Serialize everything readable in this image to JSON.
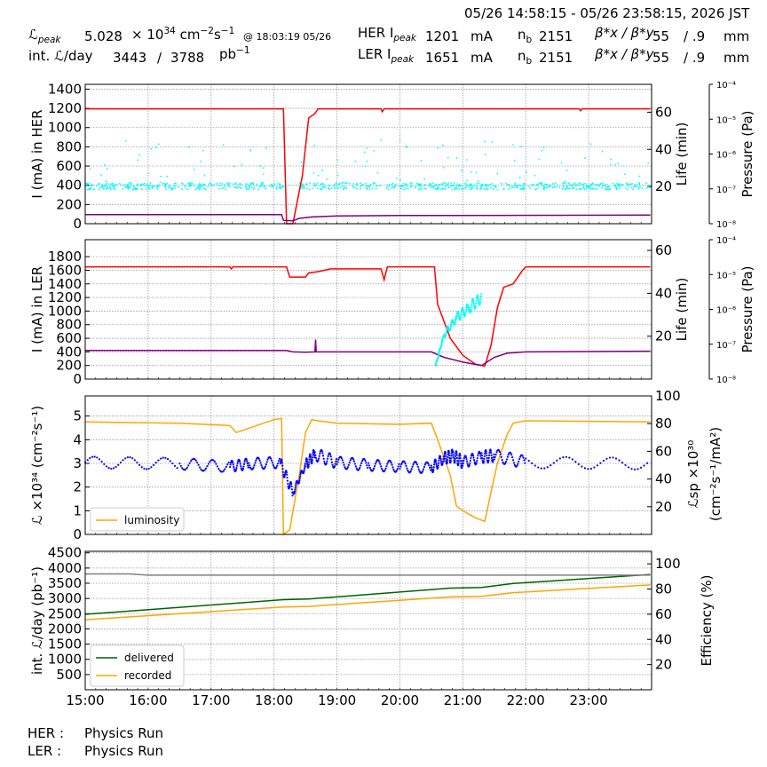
{
  "header": {
    "time_range": "05/26 14:58:15 - 05/26 23:58:15, 2026 JST",
    "lpeak_label": "ℒ",
    "lpeak_sub": "peak",
    "lpeak_value": "5.028",
    "lpeak_unit_prefix": "× 10",
    "lpeak_exp": "34",
    "lpeak_unit": "cm",
    "lpeak_unit_exp1": "−2",
    "lpeak_unit_mid": "s",
    "lpeak_unit_exp2": "−1",
    "lpeak_at": "@ 18:03:19 05/26",
    "intl_label": "int. ℒ/day",
    "intl_value1": "3443",
    "intl_slash": "/",
    "intl_value2": "3788",
    "intl_unit": "pb",
    "intl_unit_exp": "−1",
    "her_label": "HER I",
    "her_sub": "peak",
    "her_value": "1201",
    "her_unit": "mA",
    "her_nb_label": "n",
    "her_nb_sub": "b",
    "her_nb_value": "2151",
    "her_beta_label": "β*x / β*y",
    "her_beta_x": "55",
    "her_beta_y": "/ .9",
    "her_beta_unit": "mm",
    "ler_label": "LER I",
    "ler_sub": "peak",
    "ler_value": "1651",
    "ler_unit": "mA",
    "ler_nb_label": "n",
    "ler_nb_sub": "b",
    "ler_nb_value": "2151",
    "ler_beta_label": "β*x / β*y",
    "ler_beta_x": "55",
    "ler_beta_y": "/ .9",
    "ler_beta_unit": "mm"
  },
  "footer": {
    "her_label": "HER :",
    "her_status": "Physics Run",
    "ler_label": "LER :",
    "ler_status": "Physics Run"
  },
  "colors": {
    "current": "#ff0000",
    "life": "#00ffff",
    "pressure": "#800080",
    "luminosity": "#ffa500",
    "specific": "#0000ff",
    "delivered": "#006400",
    "recorded": "#ffa500",
    "efficiency": "#808080"
  },
  "chart_data": [
    {
      "type": "line",
      "ylabel": "I (mA) in HER",
      "y2label": "Life (min)",
      "y3label": "Pressure (Pa)",
      "ylim": [
        0,
        1450
      ],
      "yticks": [
        0,
        200,
        400,
        600,
        800,
        1000,
        1200,
        1400
      ],
      "y2lim": [
        0,
        75
      ],
      "y2ticks": [
        20,
        40,
        60
      ],
      "y3ticks": [
        "10⁻⁸",
        "10⁻⁷",
        "10⁻⁶",
        "10⁻⁵",
        "10⁻⁴"
      ],
      "series": [
        {
          "key": "current",
          "axis": "y",
          "x": [
            15.0,
            18.15,
            18.2,
            18.3,
            18.45,
            18.55,
            18.65,
            18.7,
            19.7,
            19.72,
            19.75,
            22.85,
            22.87,
            22.9,
            23.98
          ],
          "values": [
            1195,
            1195,
            0,
            0,
            500,
            1100,
            1145,
            1195,
            1195,
            1165,
            1195,
            1195,
            1175,
            1195,
            1195
          ]
        },
        {
          "key": "pressure",
          "axis": "y",
          "x": [
            15.0,
            18.12,
            18.15,
            18.3,
            18.4,
            18.6,
            19.0,
            20.0,
            23.98
          ],
          "values": [
            95,
            95,
            35,
            30,
            55,
            70,
            80,
            85,
            90
          ]
        }
      ],
      "scatter": {
        "key": "life",
        "axis": "y",
        "x_start": 15.0,
        "x_end": 23.98,
        "gap": [
          18.15,
          18.4
        ],
        "base": 390,
        "spread": 120
      }
    },
    {
      "type": "line",
      "ylabel": "I (mA) in LER",
      "y2label": "Life (min)",
      "y3label": "Pressure (Pa)",
      "ylim": [
        0,
        2050
      ],
      "yticks": [
        0,
        200,
        400,
        600,
        800,
        1000,
        1200,
        1400,
        1600,
        1800
      ],
      "y2lim": [
        0,
        65
      ],
      "y2ticks": [
        20,
        40,
        60
      ],
      "y3ticks": [
        "10⁻⁸",
        "10⁻⁷",
        "10⁻⁶",
        "10⁻⁵",
        "10⁻⁴"
      ],
      "series": [
        {
          "key": "current",
          "axis": "y",
          "x": [
            15.0,
            17.3,
            17.32,
            17.35,
            18.2,
            18.25,
            18.5,
            18.55,
            18.7,
            18.9,
            19.7,
            19.75,
            19.8,
            20.55,
            20.6,
            20.8,
            21.0,
            21.2,
            21.35,
            21.45,
            21.55,
            21.65,
            21.8,
            21.95,
            22.0,
            23.98
          ],
          "values": [
            1650,
            1650,
            1620,
            1650,
            1650,
            1500,
            1500,
            1560,
            1580,
            1620,
            1620,
            1460,
            1650,
            1650,
            1100,
            600,
            350,
            220,
            190,
            500,
            1050,
            1350,
            1400,
            1600,
            1650,
            1650
          ]
        },
        {
          "key": "pressure",
          "axis": "y",
          "x": [
            15.0,
            18.2,
            18.3,
            18.5,
            18.65,
            18.66,
            18.67,
            18.7,
            20.5,
            20.7,
            21.0,
            21.3,
            21.5,
            21.7,
            22.0,
            23.98
          ],
          "values": [
            420,
            420,
            400,
            395,
            400,
            580,
            400,
            400,
            400,
            320,
            250,
            200,
            320,
            380,
            400,
            410
          ]
        },
        {
          "key": "life",
          "axis": "y",
          "x": [
            20.57,
            20.7,
            20.9,
            21.1,
            21.3
          ],
          "values": [
            200,
            650,
            900,
            1050,
            1200
          ]
        }
      ]
    },
    {
      "type": "line",
      "ylabel": "ℒ ×10³⁴ (cm⁻²s⁻¹)",
      "y2label": "ℒsp ×10³⁰",
      "y2label2": "(cm⁻²s⁻¹/mA²)",
      "ylim": [
        0,
        5.85
      ],
      "yticks": [
        0,
        1,
        2,
        3,
        4,
        5
      ],
      "y2lim": [
        0,
        100
      ],
      "y2ticks": [
        20,
        40,
        60,
        80,
        100
      ],
      "legend": [
        "luminosity"
      ],
      "legend_position": "lower-left",
      "series": [
        {
          "key": "luminosity",
          "name": "luminosity",
          "axis": "y",
          "x": [
            15.0,
            16.5,
            17.3,
            17.4,
            18.0,
            18.12,
            18.15,
            18.25,
            18.4,
            18.5,
            18.6,
            18.7,
            19.0,
            20.0,
            20.5,
            20.6,
            20.8,
            20.9,
            21.0,
            21.2,
            21.35,
            21.45,
            21.55,
            21.7,
            21.8,
            22.0,
            23.98
          ],
          "values": [
            4.75,
            4.7,
            4.6,
            4.3,
            4.85,
            4.9,
            0.0,
            0.2,
            2.5,
            4.3,
            4.85,
            4.8,
            4.7,
            4.65,
            4.7,
            4.0,
            2.5,
            1.2,
            1.0,
            0.7,
            0.55,
            1.8,
            3.0,
            4.2,
            4.7,
            4.8,
            4.75
          ]
        },
        {
          "key": "specific",
          "axis": "y2",
          "x": [
            15.0,
            16.5,
            17.3,
            17.6,
            18.1,
            18.3,
            18.5,
            18.65,
            19.0,
            19.5,
            20.0,
            20.5,
            20.7,
            20.85,
            21.0,
            21.3,
            21.5,
            22.0,
            23.98
          ],
          "values": [
            52,
            51,
            49,
            51,
            52,
            30,
            50,
            58,
            52,
            50,
            49,
            48,
            55,
            57,
            52,
            56,
            57,
            52,
            51
          ]
        }
      ]
    },
    {
      "type": "line",
      "ylabel": "int. ℒ/day (pb⁻¹)",
      "y2label": "Efficiency (%)",
      "ylim": [
        0,
        4550
      ],
      "yticks": [
        500,
        1000,
        1500,
        2000,
        2500,
        3000,
        3500,
        4000,
        4500
      ],
      "y2lim": [
        0,
        110
      ],
      "y2ticks": [
        20,
        40,
        60,
        80,
        100
      ],
      "xlim": [
        15.0,
        24.0
      ],
      "xticks": [
        "15:00",
        "16:00",
        "17:00",
        "18:00",
        "19:00",
        "20:00",
        "21:00",
        "22:00",
        "23:00"
      ],
      "legend": [
        "delivered",
        "recorded"
      ],
      "legend_position": "lower-left",
      "series": [
        {
          "key": "delivered",
          "name": "delivered",
          "axis": "y",
          "x": [
            15.0,
            18.15,
            18.55,
            20.8,
            21.3,
            21.8,
            23.98
          ],
          "values": [
            2480,
            2960,
            2980,
            3340,
            3360,
            3490,
            3790
          ]
        },
        {
          "key": "recorded",
          "name": "recorded",
          "axis": "y",
          "x": [
            15.0,
            18.15,
            18.55,
            20.8,
            21.3,
            21.8,
            23.98
          ],
          "values": [
            2300,
            2720,
            2740,
            3050,
            3070,
            3190,
            3445
          ]
        },
        {
          "key": "efficiency",
          "axis": "y2",
          "x": [
            15.0,
            15.7,
            16.0,
            23.98
          ],
          "values": [
            92,
            92,
            91,
            91
          ]
        }
      ]
    }
  ]
}
